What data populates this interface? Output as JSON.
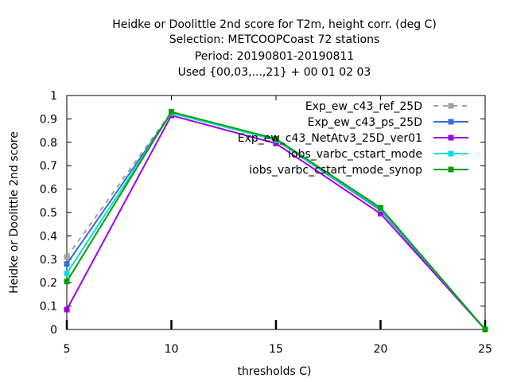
{
  "chart_data": {
    "type": "line",
    "title_lines": [
      "Heidke or Doolittle 2nd score  for T2m, height corr. (deg C)",
      "Selection: METCOOPCoast     72 stations",
      "Period: 20190801-20190811",
      "Used {00,03,...,21} + 00 01 02 03"
    ],
    "xlabel": "thresholds C)",
    "ylabel": "Heidke or Doolittle 2nd score",
    "xlim": [
      5,
      25
    ],
    "ylim": [
      0,
      1
    ],
    "xticks": [
      "5",
      "10",
      "15",
      "20",
      "25"
    ],
    "yticks": [
      "0",
      "0.1",
      "0.2",
      "0.3",
      "0.4",
      "0.5",
      "0.6",
      "0.7",
      "0.8",
      "0.9",
      "1"
    ],
    "x": [
      5,
      10,
      15,
      20,
      25
    ],
    "series": [
      {
        "name": "Exp_ew_c43_ref_25D",
        "color": "#a0a0a0",
        "dash": "dashed",
        "marker": "square",
        "values": [
          0.31,
          0.93,
          0.81,
          0.51,
          0.0
        ]
      },
      {
        "name": "Exp_ew_c43_ps_25D",
        "color": "#3a6bd8",
        "dash": "solid",
        "marker": "square",
        "values": [
          0.28,
          0.925,
          0.81,
          0.51,
          0.0
        ]
      },
      {
        "name": "Exp_ew_c43_NetAtv3_25D_ver01",
        "color": "#a000e0",
        "dash": "solid",
        "marker": "square",
        "values": [
          0.085,
          0.915,
          0.795,
          0.495,
          0.0
        ]
      },
      {
        "name": "iobs_varbc_cstart_mode",
        "color": "#00e0e0",
        "dash": "solid",
        "marker": "square",
        "values": [
          0.24,
          0.925,
          0.81,
          0.515,
          0.0
        ]
      },
      {
        "name": "iobs_varbc_cstart_mode_synop",
        "color": "#00a000",
        "dash": "solid",
        "marker": "square",
        "values": [
          0.205,
          0.93,
          0.815,
          0.52,
          0.0
        ]
      }
    ],
    "legend_position": "top-right",
    "grid": false
  }
}
